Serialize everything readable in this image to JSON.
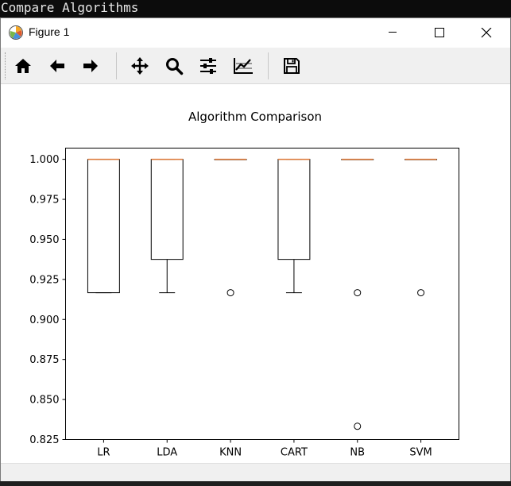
{
  "console": {
    "title": "Compare Algorithms"
  },
  "window": {
    "title": "Figure 1",
    "controls": {
      "minimize": "minimize-icon",
      "maximize": "maximize-icon",
      "close": "close-icon"
    }
  },
  "toolbar": {
    "buttons": [
      {
        "name": "home",
        "icon": "home-icon"
      },
      {
        "name": "back",
        "icon": "arrow-left-icon"
      },
      {
        "name": "forward",
        "icon": "arrow-right-icon"
      },
      {
        "name": "pan",
        "icon": "move-icon"
      },
      {
        "name": "zoom",
        "icon": "magnifier-icon"
      },
      {
        "name": "configure-subplots",
        "icon": "sliders-icon"
      },
      {
        "name": "edit-axes",
        "icon": "chart-line-icon"
      },
      {
        "name": "save",
        "icon": "floppy-disk-icon"
      }
    ]
  },
  "colors": {
    "median": "#e07b39",
    "box": "#000000",
    "toolbar_bg": "#f0f0f0"
  },
  "chart_data": {
    "type": "box",
    "title": "Algorithm Comparison",
    "xlabel": "",
    "ylabel": "",
    "ylim": [
      0.825,
      1.007
    ],
    "yticks": [
      "0.825",
      "0.850",
      "0.875",
      "0.900",
      "0.925",
      "0.950",
      "0.975",
      "1.000"
    ],
    "grid": false,
    "categories": [
      "LR",
      "LDA",
      "KNN",
      "CART",
      "NB",
      "SVM"
    ],
    "boxes": [
      {
        "label": "LR",
        "whislo": 0.9167,
        "q1": 0.9167,
        "med": 1.0,
        "q3": 1.0,
        "whishi": 1.0,
        "fliers": []
      },
      {
        "label": "LDA",
        "whislo": 0.9167,
        "q1": 0.9375,
        "med": 1.0,
        "q3": 1.0,
        "whishi": 1.0,
        "fliers": []
      },
      {
        "label": "KNN",
        "whislo": 1.0,
        "q1": 1.0,
        "med": 1.0,
        "q3": 1.0,
        "whishi": 1.0,
        "fliers": [
          0.9167
        ]
      },
      {
        "label": "CART",
        "whislo": 0.9167,
        "q1": 0.9375,
        "med": 1.0,
        "q3": 1.0,
        "whishi": 1.0,
        "fliers": []
      },
      {
        "label": "NB",
        "whislo": 1.0,
        "q1": 1.0,
        "med": 1.0,
        "q3": 1.0,
        "whishi": 1.0,
        "fliers": [
          0.9167,
          0.8333
        ]
      },
      {
        "label": "SVM",
        "whislo": 1.0,
        "q1": 1.0,
        "med": 1.0,
        "q3": 1.0,
        "whishi": 1.0,
        "fliers": [
          0.9167
        ]
      }
    ]
  }
}
